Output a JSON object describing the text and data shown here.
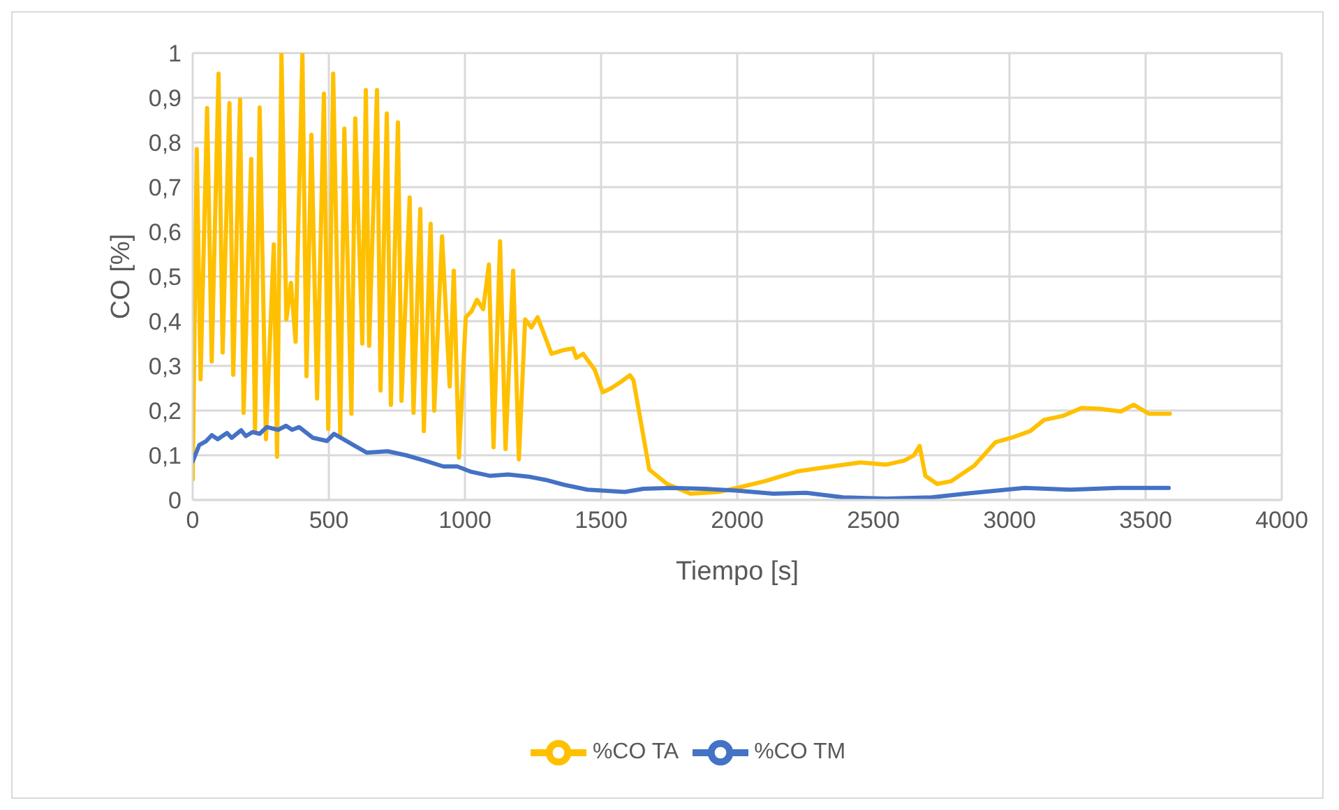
{
  "chart_data": {
    "type": "line",
    "xlabel": "Tiempo [s]",
    "ylabel": "CO [%]",
    "xlim": [
      0,
      4000
    ],
    "xticks": [
      0,
      500,
      1000,
      1500,
      2000,
      2500,
      3000,
      3500,
      4000
    ],
    "ylim": [
      0,
      1
    ],
    "yticks": [
      0,
      {
        "value": 0.1,
        "label": "0,1"
      },
      {
        "value": 0.2,
        "label": "0,2"
      },
      {
        "value": 0.3,
        "label": "0,3"
      },
      {
        "value": 0.4,
        "label": "0,4"
      },
      {
        "value": 0.5,
        "label": "0,5"
      },
      {
        "value": 0.6,
        "label": "0,6"
      },
      {
        "value": 0.7,
        "label": "0,7"
      },
      {
        "value": 0.8,
        "label": "0,8"
      },
      {
        "value": 0.9,
        "label": "0,9"
      },
      1
    ],
    "grid": true,
    "legend": "bottom",
    "marker": "none",
    "line_style": "solid",
    "series": [
      {
        "name": "%CO TA",
        "color": "#ffc000",
        "x": [
          0,
          15,
          29,
          53,
          70,
          95,
          110,
          135,
          149,
          174,
          187,
          215,
          229,
          246,
          269,
          298,
          310,
          326,
          344,
          361,
          378,
          403,
          418,
          436,
          457,
          482,
          498,
          516,
          542,
          557,
          583,
          597,
          623,
          636,
          648,
          677,
          690,
          713,
          728,
          754,
          767,
          797,
          811,
          836,
          849,
          874,
          887,
          916,
          944,
          959,
          978,
          1003,
          1024,
          1044,
          1067,
          1088,
          1105,
          1129,
          1149,
          1177,
          1198,
          1221,
          1244,
          1267,
          1318,
          1367,
          1397,
          1409,
          1434,
          1477,
          1506,
          1537,
          1572,
          1606,
          1619,
          1677,
          1742,
          1828,
          1931,
          1999,
          2101,
          2221,
          2324,
          2452,
          2547,
          2614,
          2649,
          2670,
          2691,
          2734,
          2786,
          2871,
          2948,
          3016,
          3076,
          3127,
          3196,
          3265,
          3332,
          3409,
          3456,
          3512,
          3589
        ],
        "values": [
          0.046,
          0.785,
          0.27,
          0.877,
          0.31,
          0.954,
          0.33,
          0.888,
          0.28,
          0.896,
          0.195,
          0.763,
          0.154,
          0.878,
          0.136,
          0.572,
          0.097,
          1.0,
          0.404,
          0.486,
          0.354,
          1.0,
          0.277,
          0.817,
          0.227,
          0.909,
          0.159,
          0.954,
          0.143,
          0.831,
          0.193,
          0.854,
          0.35,
          0.917,
          0.345,
          0.917,
          0.245,
          0.865,
          0.213,
          0.845,
          0.222,
          0.677,
          0.195,
          0.651,
          0.154,
          0.618,
          0.2,
          0.59,
          0.254,
          0.513,
          0.095,
          0.409,
          0.422,
          0.448,
          0.427,
          0.527,
          0.118,
          0.579,
          0.114,
          0.513,
          0.091,
          0.404,
          0.386,
          0.409,
          0.327,
          0.336,
          0.339,
          0.318,
          0.327,
          0.291,
          0.241,
          0.25,
          0.264,
          0.279,
          0.268,
          0.068,
          0.036,
          0.014,
          0.018,
          0.027,
          0.042,
          0.064,
          0.073,
          0.084,
          0.079,
          0.088,
          0.1,
          0.121,
          0.054,
          0.036,
          0.042,
          0.077,
          0.129,
          0.141,
          0.154,
          0.179,
          0.188,
          0.206,
          0.204,
          0.198,
          0.213,
          0.193,
          0.193
        ]
      },
      {
        "name": "%CO TM",
        "color": "#4472c4",
        "x": [
          0,
          24,
          50,
          70,
          92,
          126,
          143,
          178,
          195,
          220,
          246,
          272,
          314,
          343,
          365,
          391,
          442,
          493,
          519,
          553,
          596,
          639,
          716,
          784,
          852,
          921,
          972,
          1023,
          1091,
          1159,
          1236,
          1296,
          1364,
          1450,
          1587,
          1655,
          1757,
          1877,
          1996,
          2133,
          2253,
          2389,
          2543,
          2714,
          2850,
          3055,
          3226,
          3397,
          3585
        ],
        "values": [
          0.086,
          0.123,
          0.132,
          0.145,
          0.136,
          0.15,
          0.139,
          0.156,
          0.143,
          0.152,
          0.148,
          0.163,
          0.157,
          0.166,
          0.157,
          0.163,
          0.139,
          0.132,
          0.148,
          0.136,
          0.121,
          0.106,
          0.109,
          0.1,
          0.088,
          0.075,
          0.075,
          0.063,
          0.054,
          0.057,
          0.052,
          0.045,
          0.034,
          0.023,
          0.018,
          0.025,
          0.027,
          0.025,
          0.021,
          0.014,
          0.016,
          0.006,
          0.003,
          0.006,
          0.015,
          0.027,
          0.023,
          0.027,
          0.027
        ]
      }
    ]
  }
}
